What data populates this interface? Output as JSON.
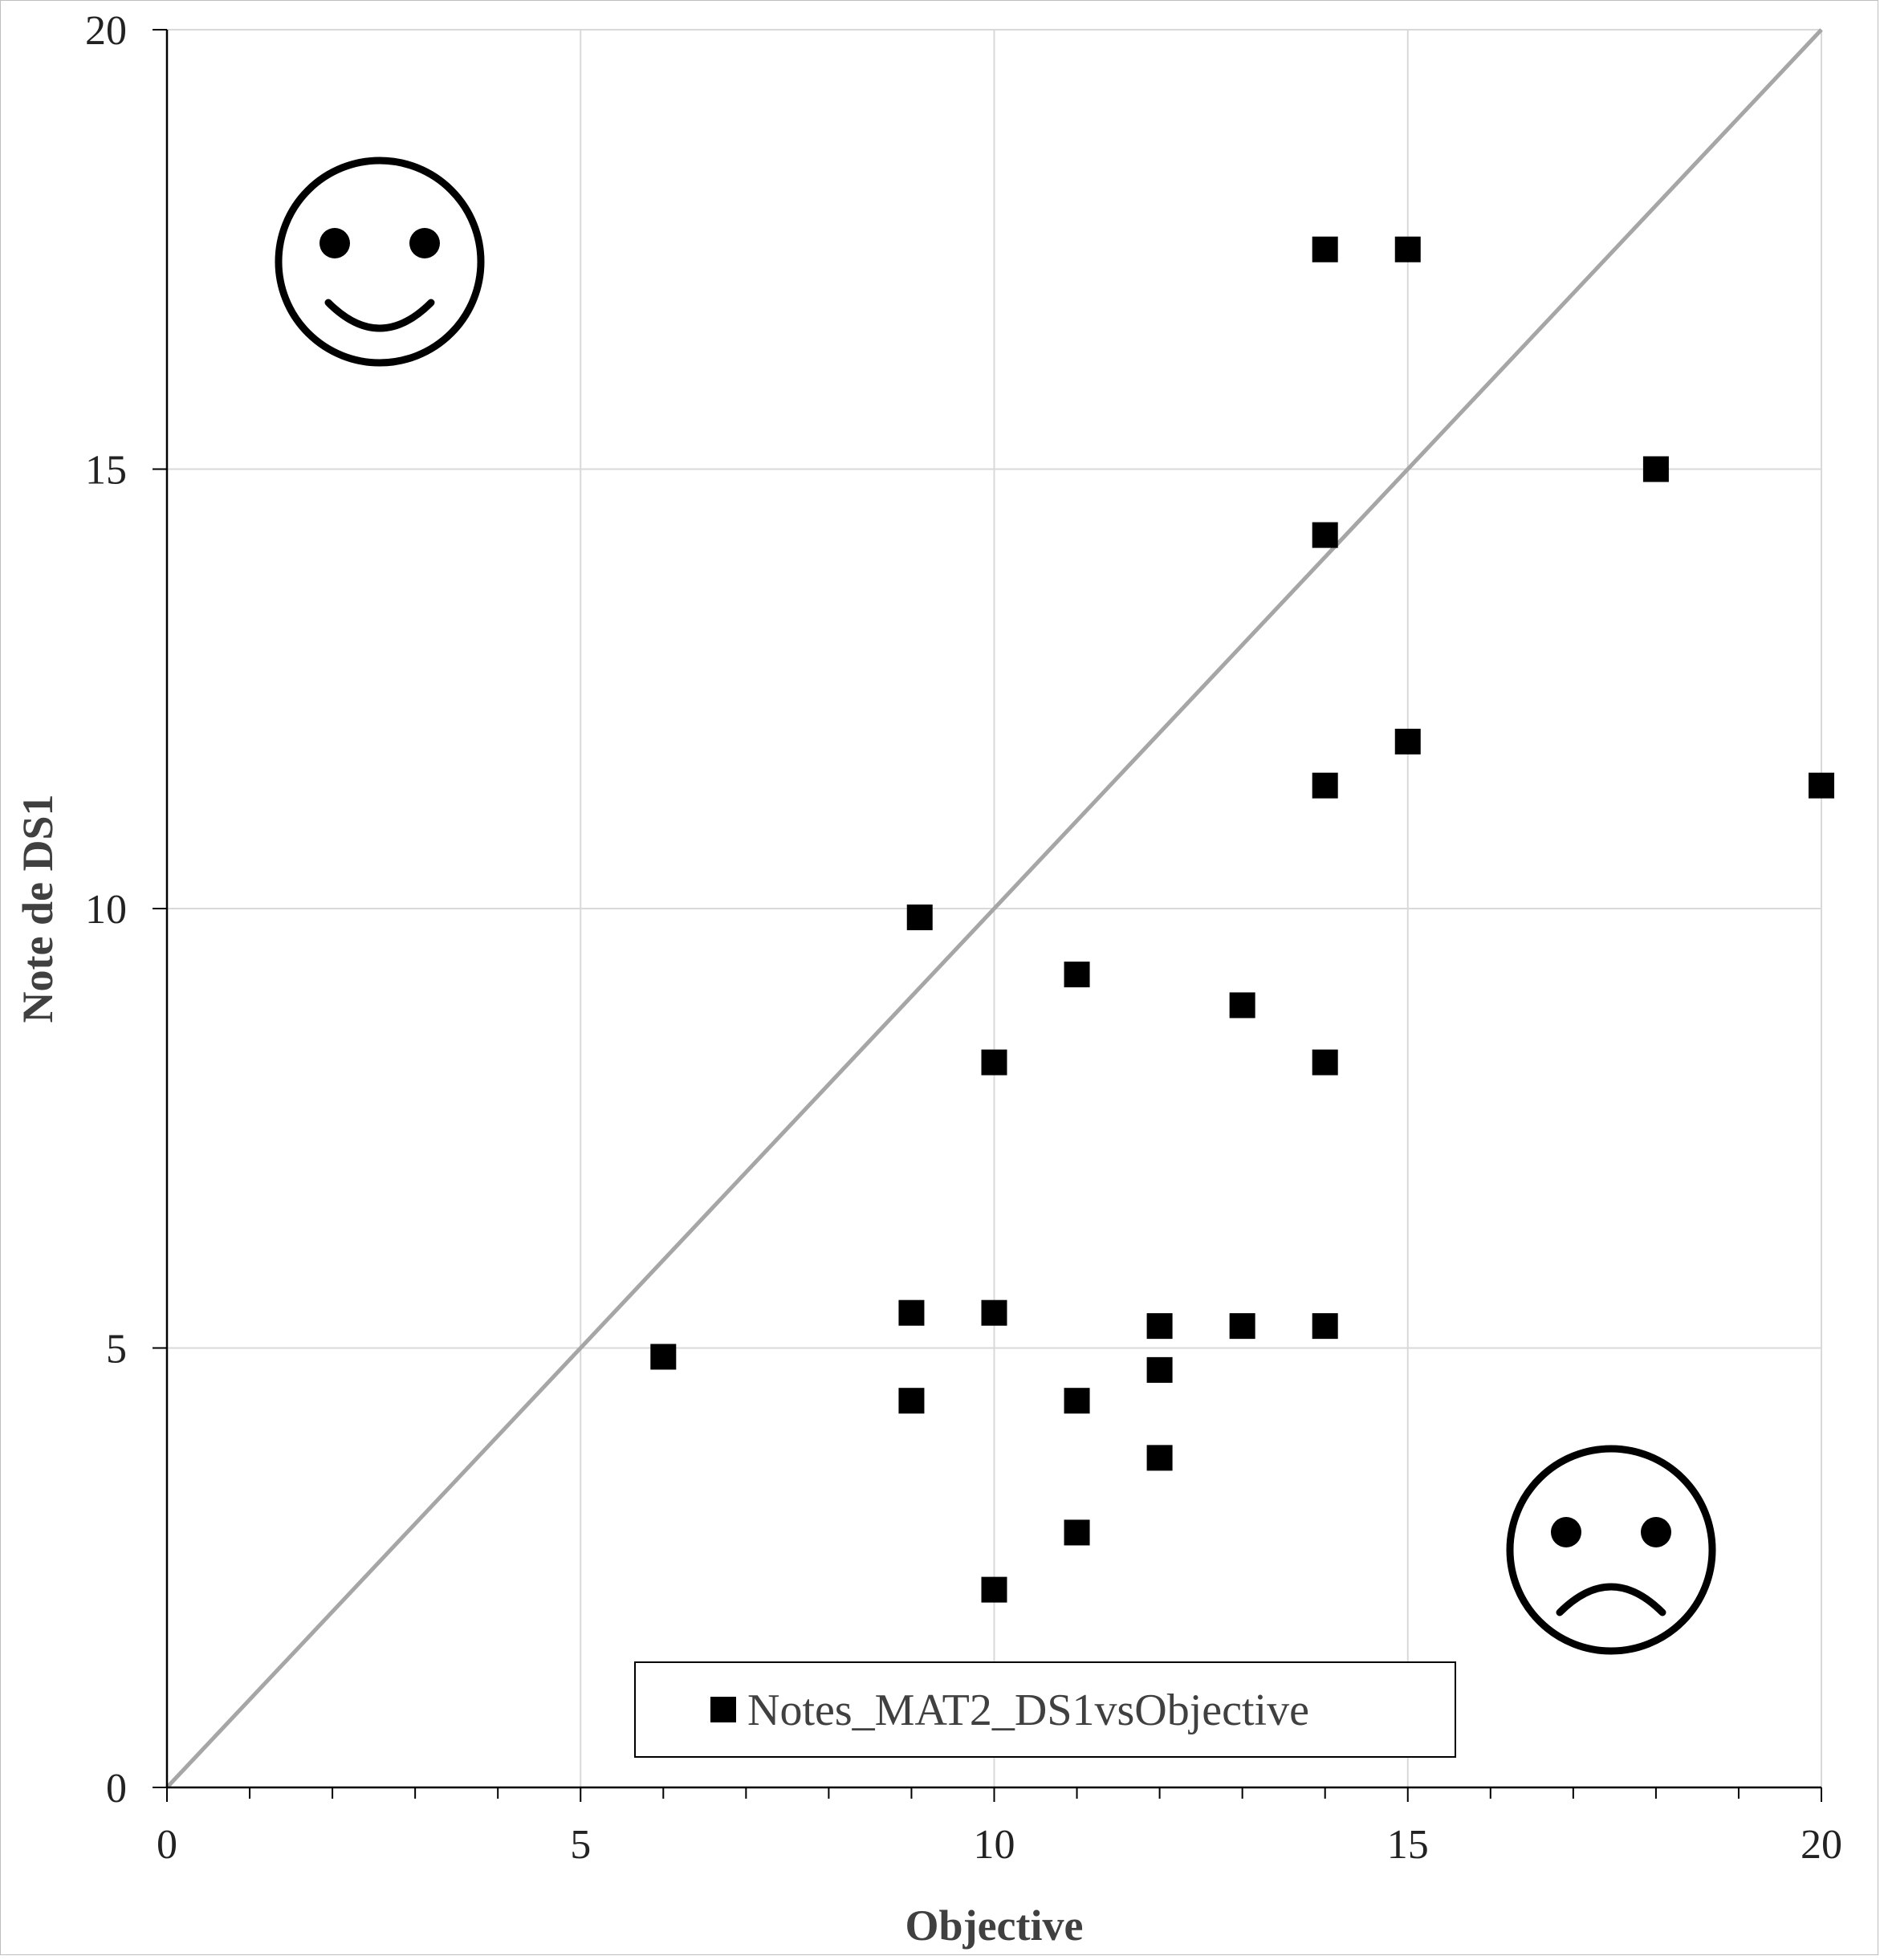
{
  "chart_data": {
    "type": "scatter",
    "title": "",
    "xlabel": "Objective",
    "ylabel": "Note de DS1",
    "xlim": [
      0,
      20
    ],
    "ylim": [
      0,
      20
    ],
    "x_ticks": [
      "0",
      "5",
      "10",
      "15",
      "20"
    ],
    "y_ticks": [
      "0",
      "5",
      "10",
      "15",
      "20"
    ],
    "grid": true,
    "legend_position": "bottom-center",
    "reference_line": {
      "from": [
        0,
        0
      ],
      "to": [
        20,
        20
      ],
      "color": "#a6a6a6"
    },
    "annotations": [
      {
        "type": "smiley",
        "position": "top-left"
      },
      {
        "type": "frowny",
        "position": "bottom-right"
      }
    ],
    "series": [
      {
        "name": "Notes_MAT2_DS1vsObjective",
        "marker": "square",
        "color": "#000000",
        "points": [
          {
            "x": 14,
            "y": 17.5
          },
          {
            "x": 15,
            "y": 17.5
          },
          {
            "x": 18,
            "y": 15
          },
          {
            "x": 14,
            "y": 14.25
          },
          {
            "x": 15,
            "y": 11.9
          },
          {
            "x": 14,
            "y": 11.4
          },
          {
            "x": 20,
            "y": 11.4
          },
          {
            "x": 9.1,
            "y": 9.9
          },
          {
            "x": 11,
            "y": 9.25
          },
          {
            "x": 13,
            "y": 8.9
          },
          {
            "x": 10,
            "y": 8.25
          },
          {
            "x": 14,
            "y": 8.25
          },
          {
            "x": 9,
            "y": 5.4
          },
          {
            "x": 10,
            "y": 5.4
          },
          {
            "x": 12,
            "y": 5.25
          },
          {
            "x": 13,
            "y": 5.25
          },
          {
            "x": 14,
            "y": 5.25
          },
          {
            "x": 6,
            "y": 4.9
          },
          {
            "x": 12,
            "y": 4.75
          },
          {
            "x": 9,
            "y": 4.4
          },
          {
            "x": 11,
            "y": 4.4
          },
          {
            "x": 12,
            "y": 3.75
          },
          {
            "x": 11,
            "y": 2.9
          },
          {
            "x": 10,
            "y": 2.25
          }
        ]
      }
    ]
  }
}
